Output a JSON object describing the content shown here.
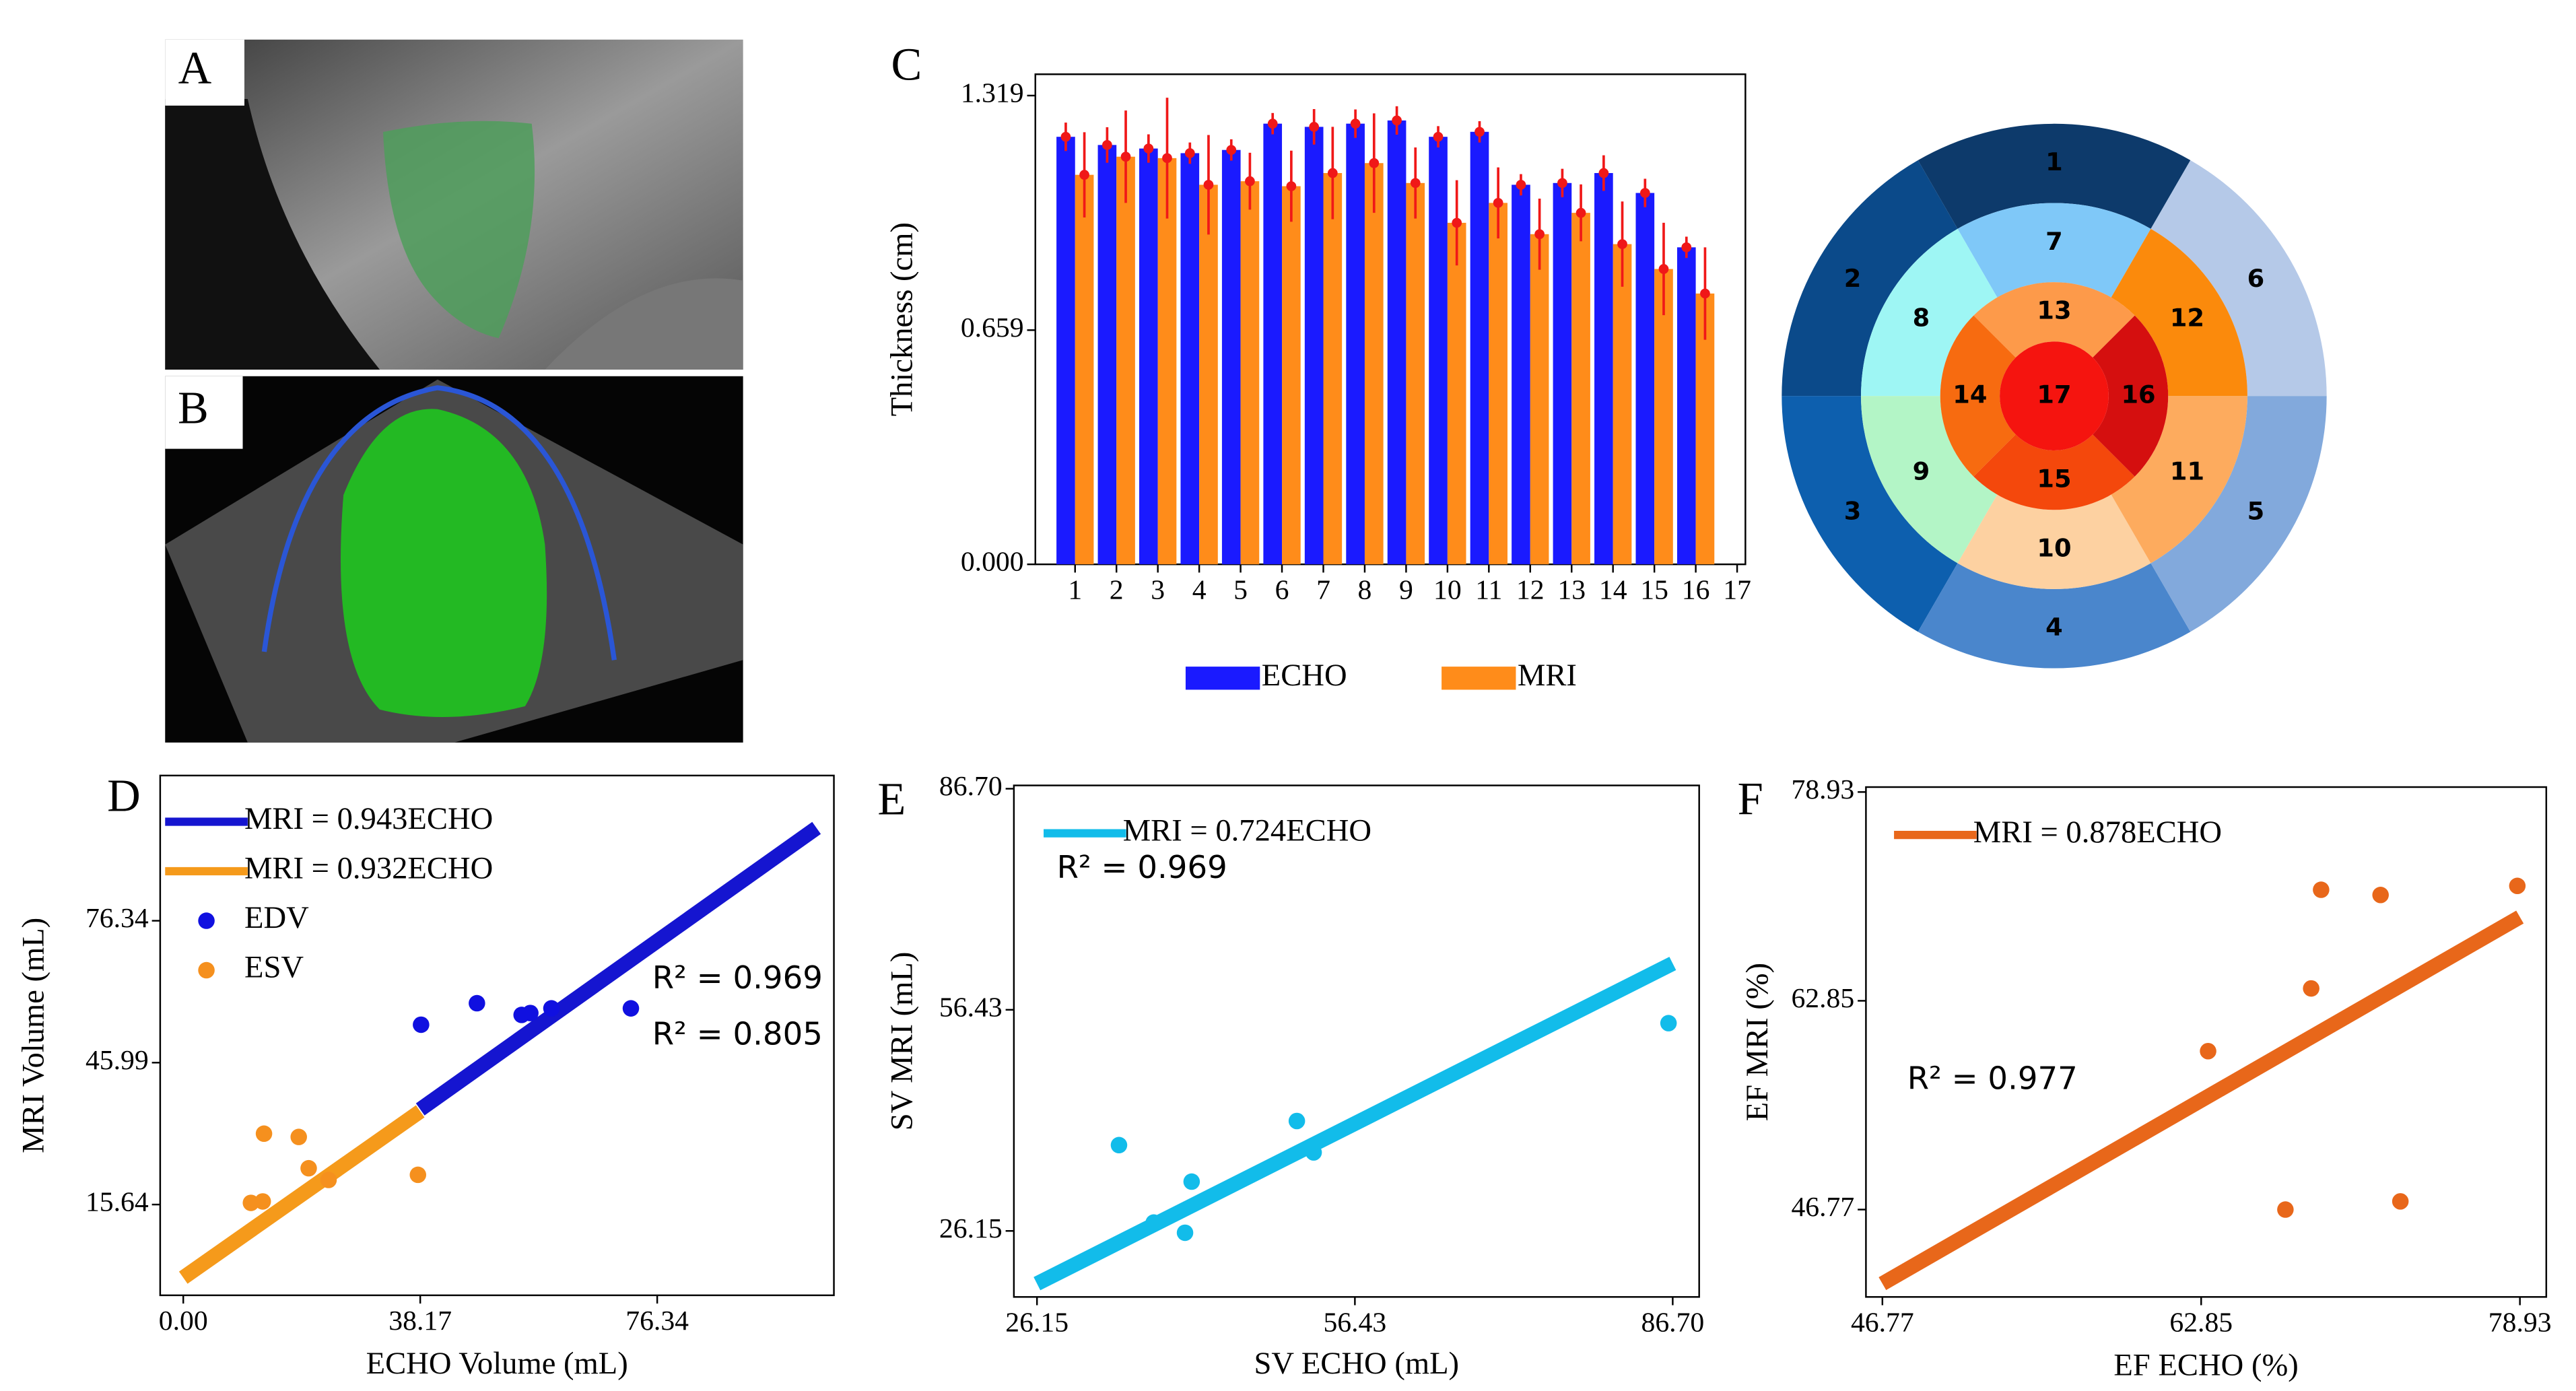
{
  "panel_labels": [
    "A",
    "B",
    "C",
    "D",
    "E",
    "F"
  ],
  "chart_data": [
    {
      "type": "bar",
      "y_label": "Thickness (cm)",
      "x": [
        1,
        2,
        3,
        4,
        5,
        6,
        7,
        8,
        9,
        10,
        11,
        12,
        13,
        14,
        15,
        16
      ],
      "xlim": [
        0.04,
        17.2
      ],
      "xticks": [
        1,
        2,
        3,
        4,
        5,
        6,
        7,
        8,
        9,
        10,
        11,
        12,
        13,
        14,
        15,
        16,
        17
      ],
      "ylim": [
        0,
        1.379
      ],
      "yticks": [
        {
          "value": 0,
          "label": "0.000"
        },
        0.659,
        1.319
      ],
      "error_color": "#f01818",
      "legend": "bottom",
      "series": [
        {
          "name": "ECHO",
          "color": "#1a1aff",
          "values": [
            1.203,
            1.18,
            1.17,
            1.157,
            1.166,
            1.24,
            1.231,
            1.24,
            1.249,
            1.203,
            1.217,
            1.068,
            1.073,
            1.101,
            1.045,
            0.892
          ],
          "errors": [
            0.04,
            0.05,
            0.04,
            0.03,
            0.03,
            0.03,
            0.05,
            0.04,
            0.04,
            0.03,
            0.03,
            0.03,
            0.04,
            0.05,
            0.04,
            0.03
          ]
        },
        {
          "name": "MRI",
          "color": "#ff8c1a",
          "values": [
            1.096,
            1.147,
            1.143,
            1.068,
            1.078,
            1.064,
            1.101,
            1.129,
            1.073,
            0.961,
            1.017,
            0.929,
            0.989,
            0.901,
            0.831,
            0.762
          ],
          "errors": [
            0.12,
            0.13,
            0.17,
            0.14,
            0.08,
            0.1,
            0.13,
            0.14,
            0.1,
            0.12,
            0.1,
            0.1,
            0.08,
            0.12,
            0.13,
            0.13
          ]
        }
      ]
    },
    {
      "type": "bullseye",
      "labels": [
        "1",
        "2",
        "3",
        "4",
        "5",
        "6",
        "7",
        "8",
        "9",
        "10",
        "11",
        "12",
        "13",
        "14",
        "15",
        "16",
        "17"
      ],
      "colors": [
        "#0d3a6b",
        "#0b4a8a",
        "#0d5fae",
        "#4a86cc",
        "#82a9dc",
        "#b5c9e8",
        "#7fc8f8",
        "#9ef6f4",
        "#b3f5c6",
        "#fdd1a1",
        "#fdab5e",
        "#fb8a0c",
        "#fd9a4a",
        "#f76b10",
        "#f4480c",
        "#d50f0f",
        "#f5140f"
      ]
    },
    {
      "type": "scatter",
      "x_label": "ECHO Volume (mL)",
      "y_label": "MRI Volume (mL)",
      "xlim": [
        -3.72,
        104.8
      ],
      "xticks": [
        {
          "value": 0,
          "label": "0.00"
        },
        38.17,
        76.34
      ],
      "ylim": [
        -3.77,
        107.4
      ],
      "yticks": [
        15.64,
        45.99,
        76.34
      ],
      "legend": "upper left",
      "fits": [
        {
          "name": "MRI = 0.943ECHO",
          "slope": 0.943,
          "x": [
            38.17,
            102
          ],
          "color": "#1515d0"
        },
        {
          "name": "MRI = 0.932ECHO",
          "slope": 0.932,
          "x": [
            0,
            38.17
          ],
          "color": "#f59a1b"
        }
      ],
      "series": [
        {
          "name": "EDV",
          "color": "#1010e0",
          "x": [
            38.3,
            47.3,
            54.5,
            55.9,
            59.3,
            72.1
          ],
          "values": [
            54.1,
            58.7,
            56.2,
            56.6,
            57.6,
            57.6
          ]
        },
        {
          "name": "ESV",
          "color": "#f5901e",
          "x": [
            13.0,
            18.6,
            20.2,
            23.4,
            10.9,
            12.8,
            37.8
          ],
          "values": [
            30.8,
            30.1,
            23.4,
            20.9,
            16.0,
            16.3,
            22.0
          ]
        }
      ],
      "annotations": [
        {
          "text": "R² = 0.969",
          "color": "#1515d0"
        },
        {
          "text": "R² = 0.805",
          "color": "#f59a1b"
        }
      ]
    },
    {
      "type": "scatter",
      "x_label": "SV ECHO (mL)",
      "y_label": "SV MRI (mL)",
      "xlim": [
        23.95,
        89.22
      ],
      "xticks": [
        26.15,
        56.43,
        {
          "value": 86.7,
          "label": "86.70"
        }
      ],
      "ylim": [
        17.11,
        87.15
      ],
      "yticks": [
        26.15,
        56.43,
        {
          "value": 86.7,
          "label": "86.70"
        }
      ],
      "legend": "upper left",
      "fits": [
        {
          "name": "MRI = 0.724ECHO",
          "slope": 0.724,
          "x": [
            26.15,
            86.7
          ],
          "color": "#12bcea"
        }
      ],
      "series": [
        {
          "color": "#12bcea",
          "x": [
            33.96,
            37.27,
            40.25,
            40.88,
            50.9,
            52.5,
            86.3
          ],
          "values": [
            37.9,
            27.3,
            25.9,
            32.9,
            41.2,
            36.9,
            54.6
          ]
        }
      ],
      "annotations": [
        {
          "text": "R² = 0.969",
          "color": "#000000"
        }
      ]
    },
    {
      "type": "scatter",
      "x_label": "EF ECHO (%)",
      "y_label": "EF MRI (%)",
      "xlim": [
        45.94,
        80.26
      ],
      "xticks": [
        46.77,
        62.85,
        78.93
      ],
      "ylim": [
        40.04,
        79.31
      ],
      "yticks": [
        46.77,
        62.85,
        78.93
      ],
      "legend": "upper left",
      "fits": [
        {
          "name": "MRI = 0.878ECHO",
          "slope": 0.878,
          "x": [
            46.77,
            78.93
          ],
          "color": "#e8671a"
        }
      ],
      "series": [
        {
          "color": "#e8671a",
          "x": [
            63.2,
            67.1,
            68.4,
            68.9,
            71.9,
            72.9,
            78.8
          ],
          "values": [
            58.97,
            46.77,
            63.8,
            71.4,
            71.0,
            47.4,
            71.7
          ]
        }
      ],
      "annotations": [
        {
          "text": "R² = 0.977",
          "color": "#000000"
        }
      ]
    }
  ]
}
